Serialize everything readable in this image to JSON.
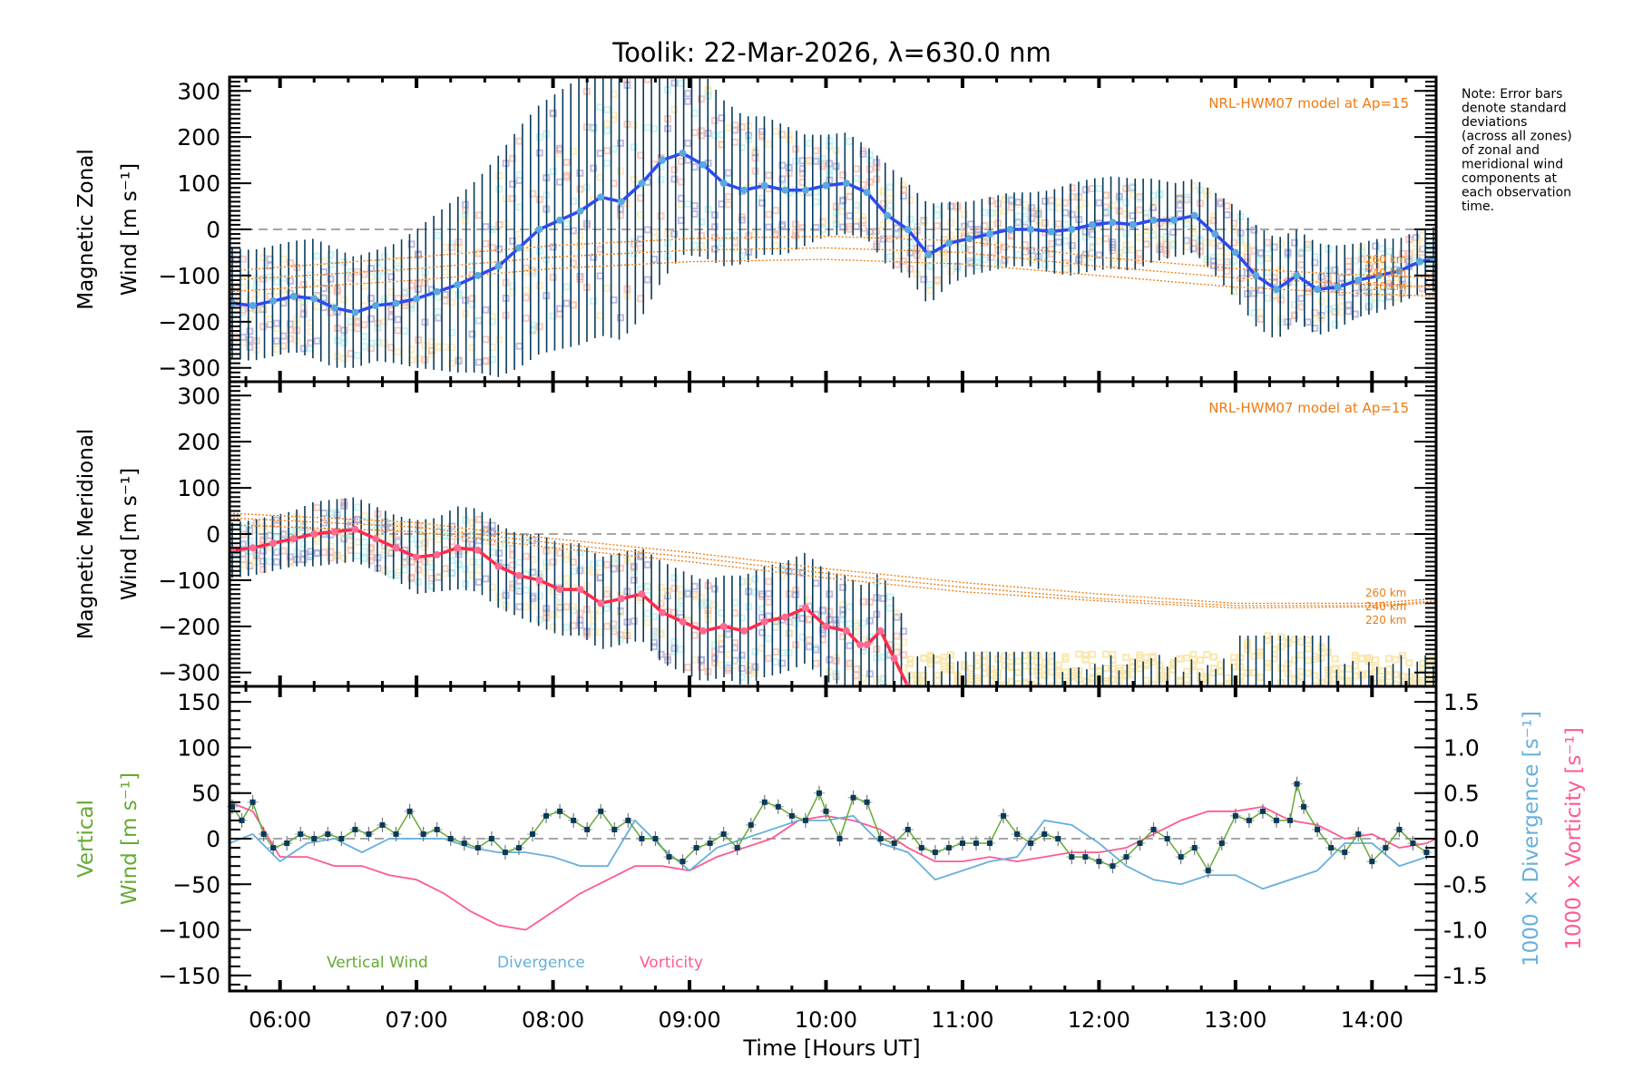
{
  "title": "Toolik: 22-Mar-2026, λ=630.0 nm",
  "note": [
    "Note: Error bars",
    "denote standard",
    "deviations",
    "(across all zones)",
    "of zonal and",
    "meridional wind",
    "components at",
    "each observation",
    "time."
  ],
  "colors": {
    "axis": "#000000",
    "zonal_line": "#2a4cf0",
    "zonal_marker": "#5aa8e0",
    "meridional_line": "#ff2a4a",
    "meridional_marker": "#ff6a90",
    "errorbar": "#0a3a5a",
    "model": "#f07a10",
    "zone_pink": "#f8b8a8",
    "zone_yellow": "#fbe8b0",
    "zone_cyan": "#b8f0f0",
    "zone_purple": "#a8a8d8",
    "vertical": "#66aa33",
    "divergence": "#66b0dd",
    "vorticity": "#ff5a90",
    "vertical_marker": "#0a3a5a",
    "zero_line": "#888888"
  },
  "chart_data": [
    {
      "type": "line",
      "name": "zonal",
      "ylabel": [
        "Magnetic Zonal",
        "Wind [m s⁻¹]"
      ],
      "ylim": [
        -330,
        330
      ],
      "yticks": [
        -300,
        -200,
        -100,
        0,
        100,
        200,
        300
      ],
      "xlim": [
        5.63,
        14.47
      ],
      "model_label": "NRL-HWM07 model at Ap=15",
      "model_alt_labels": [
        "260 km",
        "240 km",
        "220 km"
      ],
      "series": [
        {
          "name": "Zonal wind",
          "x": [
            5.65,
            5.8,
            5.95,
            6.1,
            6.25,
            6.4,
            6.55,
            6.7,
            6.85,
            7.0,
            7.15,
            7.3,
            7.45,
            7.6,
            7.75,
            7.9,
            8.05,
            8.2,
            8.35,
            8.5,
            8.65,
            8.8,
            8.95,
            9.1,
            9.25,
            9.4,
            9.55,
            9.7,
            9.85,
            10.0,
            10.15,
            10.3,
            10.45,
            10.6,
            10.75,
            10.9,
            11.05,
            11.2,
            11.35,
            11.5,
            11.65,
            11.8,
            11.95,
            12.1,
            12.25,
            12.4,
            12.55,
            12.7,
            12.85,
            13.0,
            13.15,
            13.3,
            13.45,
            13.6,
            13.75,
            13.9,
            14.05,
            14.2,
            14.35,
            14.45
          ],
          "y": [
            -160,
            -165,
            -155,
            -145,
            -150,
            -170,
            -180,
            -165,
            -160,
            -150,
            -135,
            -120,
            -100,
            -80,
            -40,
            0,
            20,
            40,
            70,
            60,
            100,
            150,
            165,
            140,
            100,
            85,
            95,
            85,
            85,
            95,
            100,
            80,
            30,
            0,
            -55,
            -30,
            -20,
            -10,
            0,
            0,
            -5,
            0,
            10,
            15,
            10,
            20,
            20,
            30,
            -10,
            -50,
            -100,
            -130,
            -100,
            -130,
            -125,
            -110,
            -100,
            -90,
            -70,
            -65
          ],
          "err": [
            120,
            120,
            120,
            120,
            130,
            130,
            120,
            120,
            130,
            150,
            170,
            190,
            210,
            240,
            260,
            270,
            280,
            290,
            300,
            300,
            290,
            260,
            220,
            200,
            180,
            160,
            150,
            140,
            120,
            110,
            110,
            100,
            110,
            100,
            110,
            90,
            80,
            80,
            80,
            80,
            90,
            100,
            100,
            100,
            100,
            90,
            80,
            80,
            90,
            100,
            110,
            110,
            100,
            100,
            90,
            80,
            80,
            70,
            70,
            70
          ]
        }
      ],
      "model": [
        {
          "alt": "260 km",
          "x": [
            5.63,
            7.0,
            8.0,
            9.0,
            10.0,
            11.0,
            12.0,
            13.0,
            14.0,
            14.47
          ],
          "y": [
            -90,
            -60,
            -35,
            -20,
            -15,
            -25,
            -60,
            -85,
            -100,
            -105
          ]
        },
        {
          "alt": "240 km",
          "x": [
            5.63,
            7.0,
            8.0,
            9.0,
            10.0,
            11.0,
            12.0,
            13.0,
            14.0,
            14.47
          ],
          "y": [
            -110,
            -85,
            -60,
            -45,
            -40,
            -50,
            -80,
            -105,
            -120,
            -125
          ]
        },
        {
          "alt": "220 km",
          "x": [
            5.63,
            7.0,
            8.0,
            9.0,
            10.0,
            11.0,
            12.0,
            13.0,
            14.0,
            14.47
          ],
          "y": [
            -135,
            -110,
            -85,
            -70,
            -65,
            -75,
            -100,
            -125,
            -140,
            -145
          ]
        }
      ]
    },
    {
      "type": "line",
      "name": "meridional",
      "ylabel": [
        "Magnetic Meridional",
        "Wind [m s⁻¹]"
      ],
      "ylim": [
        -330,
        330
      ],
      "yticks": [
        -300,
        -200,
        -100,
        0,
        100,
        200,
        300
      ],
      "xlim": [
        5.63,
        14.47
      ],
      "model_label": "NRL-HWM07 model at Ap=15",
      "model_alt_labels": [
        "260 km",
        "240 km",
        "220 km"
      ],
      "series": [
        {
          "name": "Meridional wind",
          "x": [
            5.65,
            5.8,
            5.95,
            6.1,
            6.25,
            6.4,
            6.55,
            6.7,
            6.85,
            7.0,
            7.15,
            7.3,
            7.45,
            7.6,
            7.75,
            7.9,
            8.05,
            8.2,
            8.35,
            8.5,
            8.65,
            8.8,
            8.95,
            9.1,
            9.25,
            9.4,
            9.55,
            9.7,
            9.85,
            10.0,
            10.15,
            10.25,
            10.3,
            10.4,
            10.5,
            10.6
          ],
          "y": [
            -35,
            -30,
            -20,
            -10,
            0,
            5,
            10,
            -10,
            -30,
            -50,
            -45,
            -30,
            -35,
            -70,
            -90,
            -100,
            -120,
            -120,
            -150,
            -140,
            -130,
            -170,
            -190,
            -210,
            -200,
            -210,
            -190,
            -180,
            -160,
            -200,
            -210,
            -240,
            -240,
            -210,
            -270,
            -330
          ],
          "err": [
            60,
            60,
            60,
            60,
            70,
            70,
            70,
            70,
            70,
            80,
            80,
            90,
            90,
            90,
            90,
            100,
            100,
            100,
            100,
            100,
            100,
            110,
            110,
            110,
            110,
            120,
            120,
            120,
            120,
            120,
            120,
            130,
            130,
            130,
            130,
            130
          ]
        }
      ],
      "model": [
        {
          "alt": "260 km",
          "x": [
            5.63,
            7.0,
            8.0,
            9.0,
            10.0,
            11.0,
            12.0,
            13.0,
            14.0,
            14.47
          ],
          "y": [
            45,
            25,
            -10,
            -40,
            -75,
            -105,
            -130,
            -150,
            -150,
            -140
          ]
        },
        {
          "alt": "240 km",
          "x": [
            5.63,
            7.0,
            8.0,
            9.0,
            10.0,
            11.0,
            12.0,
            13.0,
            14.0,
            14.47
          ],
          "y": [
            35,
            15,
            -20,
            -50,
            -85,
            -115,
            -140,
            -155,
            -155,
            -145
          ]
        },
        {
          "alt": "220 km",
          "x": [
            5.63,
            7.0,
            8.0,
            9.0,
            10.0,
            11.0,
            12.0,
            13.0,
            14.0,
            14.47
          ],
          "y": [
            20,
            5,
            -30,
            -60,
            -95,
            -125,
            -145,
            -160,
            -158,
            -148
          ]
        }
      ]
    },
    {
      "type": "line",
      "name": "vertical",
      "ylabel": [
        "Vertical",
        "Wind [m s⁻¹]"
      ],
      "ylim": [
        -167,
        167
      ],
      "yticks": [
        -150,
        -100,
        -50,
        0,
        50,
        100,
        150
      ],
      "y2label_div": "1000 × Divergence [s⁻¹]",
      "y2label_vort": "1000 × Vorticity [s⁻¹]",
      "y2lim": [
        -1.67,
        1.67
      ],
      "y2ticks": [
        "-1.5",
        "-1.0",
        "-0.5",
        "0.0",
        "0.5",
        "1.0",
        "1.5"
      ],
      "xlabel": "Time [Hours UT]",
      "xticks": [
        "06:00",
        "07:00",
        "08:00",
        "09:00",
        "10:00",
        "11:00",
        "12:00",
        "13:00",
        "14:00"
      ],
      "xlim": [
        5.63,
        14.47
      ],
      "legend": [
        "Vertical Wind",
        "Divergence",
        "Vorticity"
      ],
      "series": [
        {
          "name": "Vertical Wind",
          "x": [
            5.65,
            5.72,
            5.8,
            5.88,
            5.95,
            6.05,
            6.15,
            6.25,
            6.35,
            6.45,
            6.55,
            6.65,
            6.75,
            6.85,
            6.95,
            7.05,
            7.15,
            7.25,
            7.35,
            7.45,
            7.55,
            7.65,
            7.75,
            7.85,
            7.95,
            8.05,
            8.15,
            8.25,
            8.35,
            8.45,
            8.55,
            8.65,
            8.75,
            8.85,
            8.95,
            9.05,
            9.15,
            9.25,
            9.35,
            9.45,
            9.55,
            9.65,
            9.75,
            9.85,
            9.95,
            10.0,
            10.1,
            10.2,
            10.3,
            10.4,
            10.5,
            10.6,
            10.7,
            10.8,
            10.9,
            11.0,
            11.1,
            11.2,
            11.3,
            11.4,
            11.5,
            11.6,
            11.7,
            11.8,
            11.9,
            12.0,
            12.1,
            12.2,
            12.3,
            12.4,
            12.5,
            12.6,
            12.7,
            12.8,
            12.9,
            13.0,
            13.1,
            13.2,
            13.3,
            13.4,
            13.45,
            13.5,
            13.6,
            13.7,
            13.8,
            13.9,
            14.0,
            14.1,
            14.2,
            14.3,
            14.4
          ],
          "y": [
            35,
            20,
            40,
            5,
            -10,
            -5,
            5,
            0,
            5,
            0,
            10,
            5,
            15,
            5,
            30,
            5,
            10,
            0,
            -5,
            -10,
            0,
            -15,
            -10,
            5,
            25,
            30,
            20,
            10,
            30,
            10,
            20,
            0,
            0,
            -20,
            -25,
            -10,
            -5,
            5,
            -10,
            15,
            40,
            35,
            25,
            20,
            50,
            30,
            0,
            45,
            40,
            0,
            -5,
            10,
            -10,
            -15,
            -10,
            -5,
            -5,
            -5,
            25,
            5,
            -5,
            5,
            0,
            -20,
            -20,
            -25,
            -30,
            -20,
            -5,
            10,
            0,
            -20,
            -10,
            -35,
            -5,
            25,
            20,
            30,
            20,
            20,
            60,
            35,
            10,
            -10,
            -15,
            5,
            -25,
            -10,
            10,
            -5,
            -15
          ],
          "err": [
            8,
            8,
            8,
            8,
            8,
            8,
            8,
            8,
            8,
            8,
            8,
            8,
            8,
            8,
            8,
            8,
            8,
            8,
            8,
            8,
            8,
            8,
            8,
            8,
            8,
            8,
            8,
            8,
            8,
            8,
            8,
            8,
            8,
            8,
            8,
            8,
            8,
            8,
            8,
            8,
            8,
            8,
            8,
            8,
            8,
            8,
            8,
            8,
            8,
            8,
            8,
            8,
            8,
            8,
            8,
            8,
            8,
            8,
            8,
            8,
            8,
            8,
            8,
            8,
            8,
            8,
            8,
            8,
            8,
            8,
            8,
            8,
            8,
            8,
            8,
            8,
            8,
            8,
            8,
            8,
            8,
            8,
            8,
            8,
            8,
            8,
            8,
            8,
            8,
            8,
            8
          ]
        },
        {
          "name": "Divergence",
          "axis": "right",
          "x": [
            5.63,
            5.8,
            6.0,
            6.2,
            6.4,
            6.6,
            6.8,
            7.0,
            7.2,
            7.4,
            7.6,
            7.8,
            8.0,
            8.2,
            8.4,
            8.6,
            8.8,
            9.0,
            9.2,
            9.4,
            9.6,
            9.8,
            10.0,
            10.2,
            10.4,
            10.6,
            10.8,
            11.0,
            11.2,
            11.4,
            11.6,
            11.8,
            12.0,
            12.2,
            12.4,
            12.6,
            12.8,
            13.0,
            13.2,
            13.4,
            13.6,
            13.8,
            14.0,
            14.2,
            14.4,
            14.47
          ],
          "y": [
            -0.05,
            0.05,
            -0.25,
            -0.05,
            0.0,
            -0.15,
            0.0,
            0.0,
            0.0,
            -0.1,
            -0.15,
            -0.15,
            -0.2,
            -0.3,
            -0.3,
            0.2,
            -0.1,
            -0.35,
            -0.1,
            0.0,
            0.1,
            0.2,
            0.2,
            0.25,
            -0.05,
            -0.15,
            -0.45,
            -0.35,
            -0.25,
            -0.2,
            0.2,
            0.15,
            -0.05,
            -0.3,
            -0.45,
            -0.5,
            -0.4,
            -0.4,
            -0.55,
            -0.45,
            -0.35,
            -0.05,
            -0.05,
            -0.3,
            -0.2,
            -0.2
          ],
          "y2": true
        },
        {
          "name": "Vorticity",
          "axis": "right",
          "x": [
            5.63,
            5.8,
            6.0,
            6.2,
            6.4,
            6.6,
            6.8,
            7.0,
            7.2,
            7.4,
            7.6,
            7.8,
            8.0,
            8.2,
            8.4,
            8.6,
            8.8,
            9.0,
            9.2,
            9.4,
            9.6,
            9.8,
            10.0,
            10.2,
            10.4,
            10.6,
            10.8,
            11.0,
            11.2,
            11.4,
            11.6,
            11.8,
            12.0,
            12.2,
            12.4,
            12.6,
            12.8,
            13.0,
            13.2,
            13.4,
            13.6,
            13.8,
            14.0,
            14.2,
            14.4,
            14.47
          ],
          "y": [
            0.4,
            0.3,
            -0.2,
            -0.2,
            -0.3,
            -0.3,
            -0.4,
            -0.45,
            -0.6,
            -0.8,
            -0.95,
            -1.0,
            -0.8,
            -0.6,
            -0.45,
            -0.3,
            -0.3,
            -0.35,
            -0.2,
            -0.1,
            0.0,
            0.2,
            0.25,
            0.2,
            0.1,
            -0.1,
            -0.25,
            -0.25,
            -0.2,
            -0.25,
            -0.2,
            -0.15,
            -0.15,
            -0.1,
            0.05,
            0.2,
            0.3,
            0.3,
            0.35,
            0.2,
            0.15,
            0.0,
            0.05,
            -0.1,
            -0.05,
            0.0
          ],
          "y2": true
        }
      ]
    }
  ]
}
